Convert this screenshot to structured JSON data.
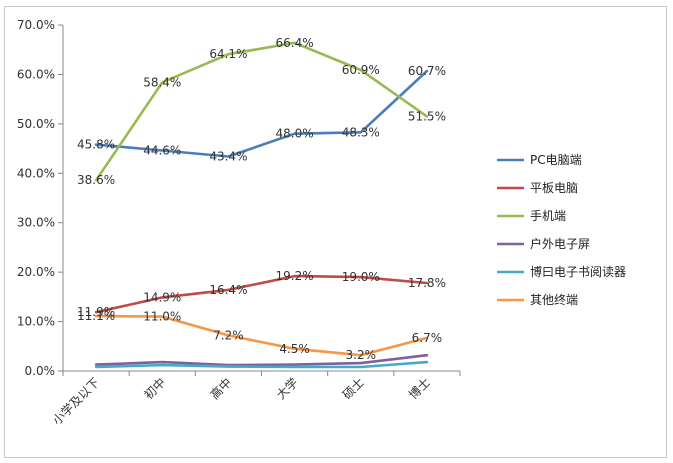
{
  "chart_data": {
    "type": "line",
    "categories": [
      "小学及以下",
      "初中",
      "高中",
      "大学",
      "硕士",
      "博士"
    ],
    "ylim": [
      0,
      70
    ],
    "yticks": [
      "0.0%",
      "10.0%",
      "20.0%",
      "30.0%",
      "40.0%",
      "50.0%",
      "60.0%",
      "70.0%"
    ],
    "grid": false,
    "legend_position": "right",
    "series": [
      {
        "name": "PC电脑端",
        "color": "#4a7ebb",
        "values": [
          45.8,
          44.6,
          43.4,
          48.0,
          48.3,
          60.7
        ],
        "labels": [
          "45.8%",
          "44.6%",
          "43.4%",
          "48.0%",
          "48.3%",
          "60.7%"
        ]
      },
      {
        "name": "平板电脑",
        "color": "#be4b48",
        "values": [
          11.9,
          14.9,
          16.4,
          19.2,
          19.0,
          17.8
        ],
        "labels": [
          "11.9%",
          "14.9%",
          "16.4%",
          "19.2%",
          "19.0%",
          "17.8%"
        ]
      },
      {
        "name": "手机端",
        "color": "#98b954",
        "values": [
          38.6,
          58.4,
          64.1,
          66.4,
          60.9,
          51.5
        ],
        "labels": [
          "38.6%",
          "58.4%",
          "64.1%",
          "66.4%",
          "60.9%",
          "51.5%"
        ]
      },
      {
        "name": "户外电子屏",
        "color": "#7d60a0",
        "values": [
          1.3,
          1.8,
          1.2,
          1.3,
          1.6,
          3.2
        ],
        "labels": []
      },
      {
        "name": "博曰电子书阅读器",
        "color": "#46aac5",
        "values": [
          0.8,
          1.2,
          0.9,
          0.8,
          0.8,
          1.8
        ],
        "labels": []
      },
      {
        "name": "其他终端",
        "color": "#f79646",
        "values": [
          11.1,
          11.0,
          7.2,
          4.5,
          3.2,
          6.7
        ],
        "labels": [
          "11.1%",
          "11.0%",
          "7.2%",
          "4.5%",
          "3.2%",
          "6.7%"
        ]
      }
    ]
  }
}
